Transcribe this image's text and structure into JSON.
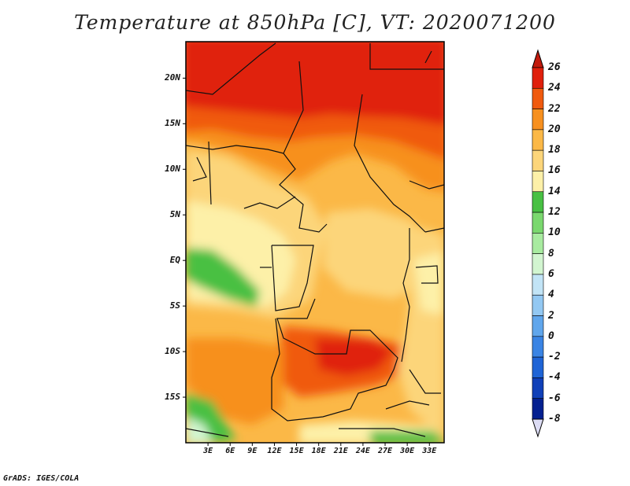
{
  "title": "Temperature at 850hPa [C], VT: 2020071200",
  "credit": "GrADS: IGES/COLA",
  "map": {
    "lon_range": [
      0,
      35
    ],
    "lat_range": [
      -20,
      24
    ],
    "lat_labels": [
      {
        "value": 20,
        "text": "20N"
      },
      {
        "value": 15,
        "text": "15N"
      },
      {
        "value": 10,
        "text": "10N"
      },
      {
        "value": 5,
        "text": "5N"
      },
      {
        "value": 0,
        "text": "EQ"
      },
      {
        "value": -5,
        "text": "5S"
      },
      {
        "value": -10,
        "text": "10S"
      },
      {
        "value": -15,
        "text": "15S"
      }
    ],
    "lon_labels": [
      {
        "value": 3,
        "text": "3E"
      },
      {
        "value": 6,
        "text": "6E"
      },
      {
        "value": 9,
        "text": "9E"
      },
      {
        "value": 12,
        "text": "12E"
      },
      {
        "value": 15,
        "text": "15E"
      },
      {
        "value": 18,
        "text": "18E"
      },
      {
        "value": 21,
        "text": "21E"
      },
      {
        "value": 24,
        "text": "24E"
      },
      {
        "value": 27,
        "text": "27E"
      },
      {
        "value": 30,
        "text": "30E"
      },
      {
        "value": 33,
        "text": "33E"
      }
    ]
  },
  "colorbar": {
    "levels": [
      "26",
      "24",
      "22",
      "20",
      "18",
      "16",
      "14",
      "12",
      "10",
      "8",
      "6",
      "4",
      "2",
      "0",
      "-2",
      "-4",
      "-6",
      "-8"
    ],
    "colors": [
      "#e0200c",
      "#f05a0e",
      "#f7901f",
      "#fbb847",
      "#fcd57a",
      "#fdf0a8",
      "#48c043",
      "#7ad86e",
      "#a8eba0",
      "#d2f5d0",
      "#c2e4f6",
      "#93c8f2",
      "#60a6ec",
      "#3a84e4",
      "#1f64d6",
      "#1040b8",
      "#042090"
    ],
    "over_color": "#c21a0c",
    "under_color": "#dcdcf4"
  }
}
